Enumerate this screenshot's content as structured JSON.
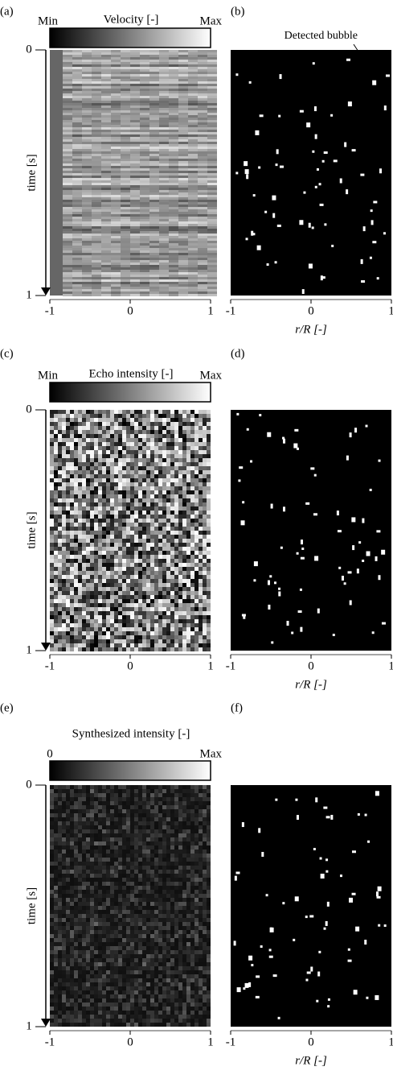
{
  "panels": [
    {
      "label": "(a)",
      "colorbar": {
        "title": "Velocity [-]",
        "min": "Min",
        "max": "Max"
      },
      "y_axis": {
        "label": "time [s]",
        "ticks": [
          "0",
          "1"
        ]
      },
      "x_ticks": [
        "-1",
        "0",
        "1"
      ]
    },
    {
      "label": "(b)",
      "annotation": "Detected bubble",
      "x_ticks": [
        "-1",
        "0",
        "1"
      ],
      "x_axis_label": "r/R [-]"
    },
    {
      "label": "(c)",
      "colorbar": {
        "title": "Echo intensity [-]",
        "min": "Min",
        "max": "Max"
      },
      "y_axis": {
        "label": "time [s]",
        "ticks": [
          "0",
          "1"
        ]
      },
      "x_ticks": [
        "-1",
        "0",
        "1"
      ]
    },
    {
      "label": "(d)",
      "x_ticks": [
        "-1",
        "0",
        "1"
      ],
      "x_axis_label": "r/R [-]"
    },
    {
      "label": "(e)",
      "colorbar": {
        "title": "Synthesized intensity [-]",
        "min": "0",
        "max": "Max"
      },
      "y_axis": {
        "label": "time [s]",
        "ticks": [
          "0",
          "1"
        ]
      },
      "x_ticks": [
        "-1",
        "0",
        "1"
      ]
    },
    {
      "label": "(f)",
      "x_ticks": [
        "-1",
        "0",
        "1"
      ],
      "x_axis_label": "r/R [-]"
    }
  ]
}
